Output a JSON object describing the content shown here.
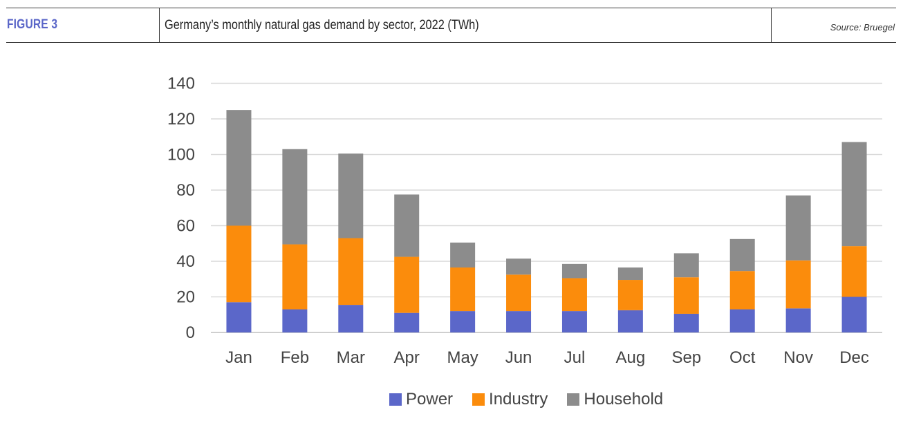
{
  "header": {
    "figure_label": "FIGURE 3",
    "title": "Germany’s monthly natural gas demand by sector, 2022 (TWh)",
    "source": "Source: Bruegel"
  },
  "chart_data": {
    "type": "bar",
    "stacked": true,
    "categories": [
      "Jan",
      "Feb",
      "Mar",
      "Apr",
      "May",
      "Jun",
      "Jul",
      "Aug",
      "Sep",
      "Oct",
      "Nov",
      "Dec"
    ],
    "series": [
      {
        "name": "Power",
        "color": "#5b67c9",
        "values": [
          17,
          13,
          15.5,
          11,
          12,
          12,
          12,
          12.5,
          10.5,
          13,
          13.5,
          20
        ]
      },
      {
        "name": "Industry",
        "color": "#fb8c0c",
        "values": [
          43,
          36.5,
          37.5,
          31.5,
          24.5,
          20.5,
          18.5,
          17,
          20.5,
          21.5,
          27,
          28.5
        ]
      },
      {
        "name": "Household",
        "color": "#8c8c8c",
        "values": [
          65,
          53.5,
          47.5,
          35,
          14,
          9,
          8,
          7,
          13.5,
          18,
          36.5,
          58.5
        ]
      }
    ],
    "ylim": [
      0,
      140
    ],
    "yticks": [
      0,
      20,
      40,
      60,
      80,
      100,
      120,
      140
    ],
    "grid": true,
    "legend_position": "bottom"
  }
}
